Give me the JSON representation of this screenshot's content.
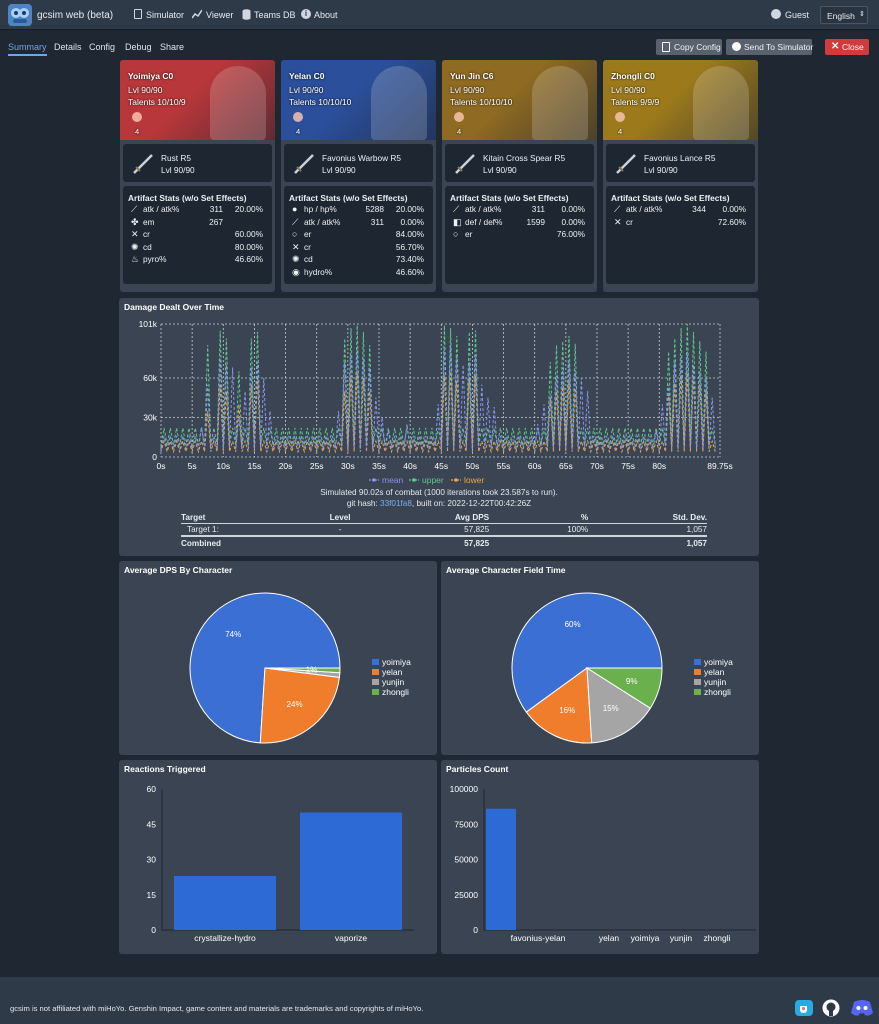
{
  "app": {
    "title": "gcsim web (beta)",
    "user": "Guest",
    "language": "English"
  },
  "nav": {
    "simulator": "Simulator",
    "viewer": "Viewer",
    "teams": "Teams DB",
    "about": "About"
  },
  "tabs": [
    "Summary",
    "Details",
    "Config",
    "Debug",
    "Share"
  ],
  "actions": {
    "copy": "Copy Config",
    "send": "Send To Simulator",
    "close": "Close"
  },
  "characters": [
    {
      "name": "Yoimiya C0",
      "level": "Lvl 90/90",
      "talents": "Talents 10/10/9",
      "cons": "4",
      "bg": "#b8373a",
      "weapon": {
        "name": "Rust R5",
        "level": "Lvl 90/90"
      },
      "stats_title": "Artifact Stats (w/o Set Effects)",
      "stats": [
        {
          "label": "atk / atk%",
          "v1": "311",
          "v2": "20.00%"
        },
        {
          "label": "em",
          "v1": "267",
          "v2": ""
        },
        {
          "label": "cr",
          "v1": "",
          "v2": "60.00%"
        },
        {
          "label": "cd",
          "v1": "",
          "v2": "80.00%"
        },
        {
          "label": "pyro%",
          "v1": "",
          "v2": "46.60%"
        }
      ]
    },
    {
      "name": "Yelan C0",
      "level": "Lvl 90/90",
      "talents": "Talents 10/10/10",
      "cons": "4",
      "bg": "#2b4f9a",
      "weapon": {
        "name": "Favonius Warbow R5",
        "level": "Lvl 90/90"
      },
      "stats_title": "Artifact Stats (w/o Set Effects)",
      "stats": [
        {
          "label": "hp / hp%",
          "v1": "5288",
          "v2": "20.00%"
        },
        {
          "label": "atk / atk%",
          "v1": "311",
          "v2": "0.00%"
        },
        {
          "label": "er",
          "v1": "",
          "v2": "84.00%"
        },
        {
          "label": "cr",
          "v1": "",
          "v2": "56.70%"
        },
        {
          "label": "cd",
          "v1": "",
          "v2": "73.40%"
        },
        {
          "label": "hydro%",
          "v1": "",
          "v2": "46.60%"
        }
      ]
    },
    {
      "name": "Yun Jin C6",
      "level": "Lvl 90/90",
      "talents": "Talents 10/10/10",
      "cons": "4",
      "bg": "#8e6a22",
      "weapon": {
        "name": "Kitain Cross Spear R5",
        "level": "Lvl 90/90"
      },
      "stats_title": "Artifact Stats (w/o Set Effects)",
      "stats": [
        {
          "label": "atk / atk%",
          "v1": "311",
          "v2": "0.00%"
        },
        {
          "label": "def / def%",
          "v1": "1599",
          "v2": "0.00%"
        },
        {
          "label": "er",
          "v1": "",
          "v2": "76.00%"
        }
      ]
    },
    {
      "name": "Zhongli C0",
      "level": "Lvl 90/90",
      "talents": "Talents 9/9/9",
      "cons": "4",
      "bg": "#9c7a1c",
      "weapon": {
        "name": "Favonius Lance R5",
        "level": "Lvl 90/90"
      },
      "stats_title": "Artifact Stats (w/o Set Effects)",
      "stats": [
        {
          "label": "atk / atk%",
          "v1": "344",
          "v2": "0.00%"
        },
        {
          "label": "cr",
          "v1": "",
          "v2": "72.60%"
        }
      ]
    }
  ],
  "damage": {
    "title": "Damage Dealt Over Time",
    "sim_text": "Simulated 90.02s of combat (1000 iterations took 23.587s to run).",
    "git_prefix": "git hash: ",
    "git_hash": "33f01fa8",
    "git_suffix": ", built on: 2022-12-22T00:42:26Z",
    "table": {
      "headers": [
        "Target",
        "Level",
        "Avg DPS",
        "%",
        "Std. Dev."
      ],
      "row": [
        "Target 1:",
        "-",
        "57,825",
        "100%",
        "1,057"
      ],
      "total": [
        "Combined",
        "",
        "57,825",
        "",
        "1,057"
      ]
    }
  },
  "dps_pie": {
    "title": "Average DPS By Character"
  },
  "field_pie": {
    "title": "Average Character Field Time"
  },
  "reactions": {
    "title": "Reactions Triggered"
  },
  "particles": {
    "title": "Particles Count"
  },
  "footer": {
    "text": "gcsim is not affiliated with miHoYo. Genshin Impact, game content and materials are trademarks and copyrights of miHoYo."
  },
  "colors": {
    "blue": "#3b6fd4",
    "orange": "#ef7d2c",
    "gray": "#a5a5a5",
    "green": "#6ab04c",
    "mean": "#8b93f0",
    "upper": "#5fc98e",
    "lower": "#e8a842"
  },
  "chart_data": [
    {
      "type": "line",
      "title": "Damage Dealt Over Time",
      "xlabel": "",
      "ylabel": "",
      "x_ticks": [
        "0s",
        "5s",
        "10s",
        "15s",
        "20s",
        "25s",
        "30s",
        "35s",
        "40s",
        "45s",
        "50s",
        "55s",
        "60s",
        "65s",
        "70s",
        "75s",
        "80s",
        "89.75s"
      ],
      "y_ticks": [
        "0",
        "30k",
        "60k",
        "101k"
      ],
      "ylim": [
        0,
        101000
      ],
      "xlim": [
        0,
        89.75
      ],
      "legend": [
        "mean",
        "upper",
        "lower"
      ],
      "series": [
        {
          "name": "mean",
          "peaks_x": [
            6,
            7,
            9,
            10,
            11,
            12,
            13,
            14,
            15,
            16,
            17,
            28,
            29,
            30,
            31,
            32,
            33,
            34,
            35,
            36,
            39,
            44,
            45,
            46,
            47,
            48,
            49,
            50,
            51,
            52,
            53,
            60,
            61,
            62,
            63,
            64,
            65,
            66,
            67,
            68,
            79,
            80,
            81,
            82,
            83,
            84,
            85,
            86,
            87,
            88
          ],
          "peaks_y": [
            23000,
            55000,
            75000,
            70000,
            68000,
            30000,
            50000,
            68000,
            72000,
            60000,
            35000,
            35000,
            72000,
            78000,
            82000,
            75000,
            68000,
            45000,
            30000,
            20000,
            25000,
            40000,
            82000,
            85000,
            76000,
            70000,
            72000,
            78000,
            55000,
            45000,
            38000,
            25000,
            40000,
            48000,
            62000,
            68000,
            72000,
            66000,
            60000,
            50000,
            20000,
            40000,
            55000,
            72000,
            76000,
            80000,
            70000,
            65000,
            60000,
            45000
          ]
        },
        {
          "name": "upper",
          "peaks_x": [
            7,
            9,
            10,
            12,
            14,
            15,
            29,
            30,
            31,
            32,
            33,
            45,
            46,
            47,
            49,
            50,
            62,
            63,
            64,
            65,
            66,
            81,
            82,
            83,
            84,
            85,
            86,
            87
          ],
          "peaks_y": [
            85000,
            96000,
            90000,
            65000,
            90000,
            95000,
            90000,
            98000,
            100000,
            95000,
            85000,
            100000,
            98000,
            92000,
            95000,
            96000,
            72000,
            85000,
            88000,
            92000,
            86000,
            80000,
            90000,
            98000,
            101000,
            95000,
            88000,
            80000
          ]
        },
        {
          "name": "lower",
          "peaks_x": [
            7,
            9,
            10,
            12,
            14,
            15,
            29,
            30,
            31,
            32,
            33,
            45,
            46,
            47,
            49,
            50,
            62,
            63,
            64,
            65,
            66,
            81,
            82,
            83,
            84,
            85,
            86,
            87
          ],
          "peaks_y": [
            35000,
            55000,
            50000,
            40000,
            55000,
            60000,
            50000,
            62000,
            64000,
            60000,
            50000,
            62000,
            65000,
            58000,
            60000,
            62000,
            45000,
            50000,
            55000,
            58000,
            52000,
            48000,
            56000,
            62000,
            64000,
            60000,
            55000,
            50000
          ]
        }
      ]
    },
    {
      "type": "pie",
      "title": "Average DPS By Character",
      "categories": [
        "yoimiya",
        "yelan",
        "yunjin",
        "zhongli"
      ],
      "values": [
        74,
        24,
        1,
        1
      ],
      "labels": [
        "74%",
        "24%",
        "",
        "1%"
      ]
    },
    {
      "type": "pie",
      "title": "Average Character Field Time",
      "categories": [
        "yoimiya",
        "yelan",
        "yunjin",
        "zhongli"
      ],
      "values": [
        60,
        16,
        15,
        9
      ],
      "labels": [
        "60%",
        "16%",
        "15%",
        "9%"
      ]
    },
    {
      "type": "bar",
      "title": "Reactions Triggered",
      "categories": [
        "crystallize-hydro",
        "vaporize"
      ],
      "values": [
        23,
        50
      ],
      "ylim": [
        0,
        60
      ],
      "y_ticks": [
        "0",
        "15",
        "30",
        "45",
        "60"
      ]
    },
    {
      "type": "bar",
      "title": "Particles Count",
      "categories": [
        "favonius-yelan",
        "yelan",
        "yoimiya",
        "yunjin",
        "zhongli"
      ],
      "values": [
        86000,
        0,
        0,
        0,
        0
      ],
      "ylim": [
        0,
        100000
      ],
      "y_ticks": [
        "0",
        "25000",
        "50000",
        "75000",
        "100000"
      ]
    }
  ]
}
